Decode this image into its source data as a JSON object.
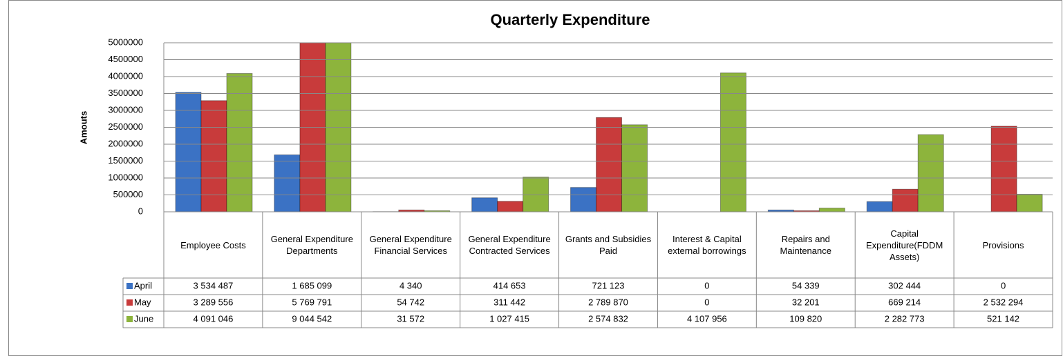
{
  "chart_data": {
    "type": "bar",
    "title": "Quarterly Expenditure",
    "y_label": "Amouts",
    "categories": [
      "Employee Costs",
      "General Expenditure Departments",
      "General Expenditure Financial Services",
      "General Expenditure Contracted Services",
      "Grants and Subsidies Paid",
      "Interest & Capital external borrowings",
      "Repairs and Maintenance",
      "Capital Expenditure(FDDM Assets)",
      "Provisions"
    ],
    "series": [
      {
        "name": "April",
        "color": "#3b72c4",
        "values": [
          3534487,
          1685099,
          4340,
          414653,
          721123,
          0,
          54339,
          302444,
          0
        ],
        "value_labels": [
          "3 534 487",
          "1 685 099",
          "4 340",
          "414 653",
          "721 123",
          "0",
          "54 339",
          "302 444",
          "0"
        ]
      },
      {
        "name": "May",
        "color": "#c83b3b",
        "values": [
          3289556,
          5769791,
          54742,
          311442,
          2789870,
          0,
          32201,
          669214,
          2532294
        ],
        "value_labels": [
          "3 289 556",
          "5 769 791",
          "54 742",
          "311 442",
          "2 789 870",
          "0",
          "32 201",
          "669 214",
          "2 532 294"
        ]
      },
      {
        "name": "June",
        "color": "#8db43c",
        "values": [
          4091046,
          9044542,
          31572,
          1027415,
          2574832,
          4107956,
          109820,
          2282773,
          521142
        ],
        "value_labels": [
          "4 091 046",
          "9 044 542",
          "31 572",
          "1 027 415",
          "2 574 832",
          "4 107 956",
          "109 820",
          "2 282 773",
          "521 142"
        ]
      }
    ],
    "ylim": [
      0,
      5000000
    ],
    "yticks": [
      0,
      500000,
      1000000,
      1500000,
      2000000,
      2500000,
      3000000,
      3500000,
      4000000,
      4500000,
      5000000
    ],
    "grid": true
  }
}
